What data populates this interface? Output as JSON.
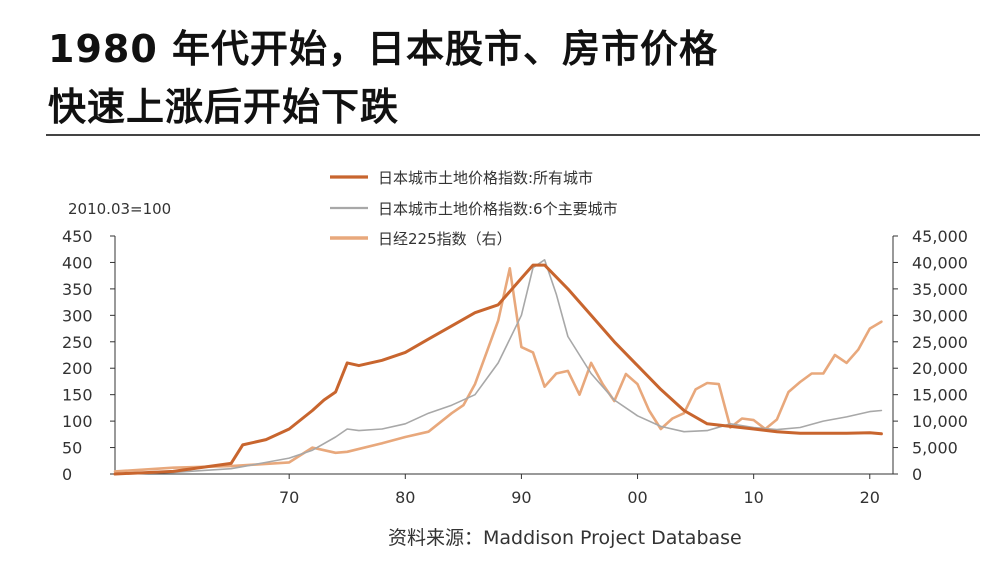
{
  "header": {
    "title_line1": "1980 年代开始，日本股市、房市价格",
    "title_line2": "快速上涨后开始下跌"
  },
  "source": "资料来源：Maddison  Project  Database",
  "chart_data": {
    "type": "line",
    "left_axis_label": "2010.03=100",
    "left_ylim": [
      0,
      450
    ],
    "left_ticks": [
      0,
      50,
      100,
      150,
      200,
      250,
      300,
      350,
      400,
      450
    ],
    "left_tick_labels": [
      "0",
      "50",
      "100",
      "150",
      "200",
      "250",
      "300",
      "350",
      "400",
      "450"
    ],
    "right_ylim": [
      0,
      45000
    ],
    "right_ticks": [
      0,
      5000,
      10000,
      15000,
      20000,
      25000,
      30000,
      35000,
      40000,
      45000
    ],
    "right_tick_labels": [
      "0",
      "5,000",
      "10,000",
      "15,000",
      "20,000",
      "25,000",
      "30,000",
      "35,000",
      "40,000",
      "45,000"
    ],
    "xlim": [
      1955,
      2022
    ],
    "x_ticks": [
      1970,
      1980,
      1990,
      2000,
      2010,
      2020
    ],
    "x_tick_labels": [
      "70",
      "80",
      "90",
      "00",
      "10",
      "20"
    ],
    "series": [
      {
        "name": "日本城市土地价格指数:所有城市",
        "axis": "left",
        "color": "#c8652e",
        "x": [
          1955,
          1960,
          1965,
          1966,
          1968,
          1970,
          1972,
          1973,
          1974,
          1975,
          1976,
          1978,
          1980,
          1982,
          1984,
          1986,
          1988,
          1990,
          1991,
          1992,
          1994,
          1996,
          1998,
          2000,
          2002,
          2004,
          2006,
          2008,
          2010,
          2012,
          2014,
          2016,
          2018,
          2020,
          2021
        ],
        "y": [
          0,
          5,
          20,
          55,
          65,
          85,
          120,
          140,
          155,
          210,
          205,
          215,
          230,
          255,
          280,
          305,
          320,
          370,
          395,
          395,
          350,
          300,
          250,
          205,
          160,
          120,
          95,
          90,
          85,
          80,
          77,
          77,
          77,
          78,
          76
        ]
      },
      {
        "name": "日本城市土地价格指数:6个主要城市",
        "axis": "left",
        "color": "#a8a8a8",
        "x": [
          1955,
          1960,
          1965,
          1968,
          1970,
          1972,
          1974,
          1975,
          1976,
          1978,
          1980,
          1982,
          1984,
          1986,
          1988,
          1990,
          1991,
          1992,
          1993,
          1994,
          1996,
          1998,
          2000,
          2002,
          2004,
          2006,
          2008,
          2010,
          2012,
          2014,
          2016,
          2018,
          2020,
          2021
        ],
        "y": [
          0,
          3,
          10,
          22,
          30,
          45,
          70,
          85,
          82,
          85,
          95,
          115,
          130,
          150,
          210,
          300,
          390,
          405,
          340,
          260,
          190,
          140,
          110,
          90,
          80,
          82,
          95,
          88,
          84,
          88,
          100,
          108,
          118,
          120
        ]
      },
      {
        "name": "日经225指数（右）",
        "axis": "right",
        "color": "#e8a87c",
        "x": [
          1955,
          1960,
          1965,
          1970,
          1972,
          1973,
          1974,
          1975,
          1978,
          1980,
          1982,
          1984,
          1985,
          1986,
          1987,
          1988,
          1989,
          1990,
          1991,
          1992,
          1993,
          1994,
          1995,
          1996,
          1997,
          1998,
          1999,
          2000,
          2001,
          2002,
          2003,
          2004,
          2005,
          2006,
          2007,
          2008,
          2009,
          2010,
          2011,
          2012,
          2013,
          2014,
          2015,
          2016,
          2017,
          2018,
          2019,
          2020,
          2021
        ],
        "y": [
          500,
          1200,
          1500,
          2200,
          5000,
          4500,
          4000,
          4200,
          5800,
          7000,
          8000,
          11500,
          13000,
          17000,
          23000,
          29000,
          38900,
          24000,
          23000,
          16500,
          19000,
          19500,
          15000,
          21000,
          17000,
          13800,
          18900,
          17000,
          12000,
          8500,
          10500,
          11500,
          16000,
          17200,
          17000,
          8800,
          10500,
          10200,
          8500,
          10300,
          15500,
          17400,
          19000,
          19000,
          22500,
          21000,
          23500,
          27500,
          28800
        ]
      }
    ]
  }
}
